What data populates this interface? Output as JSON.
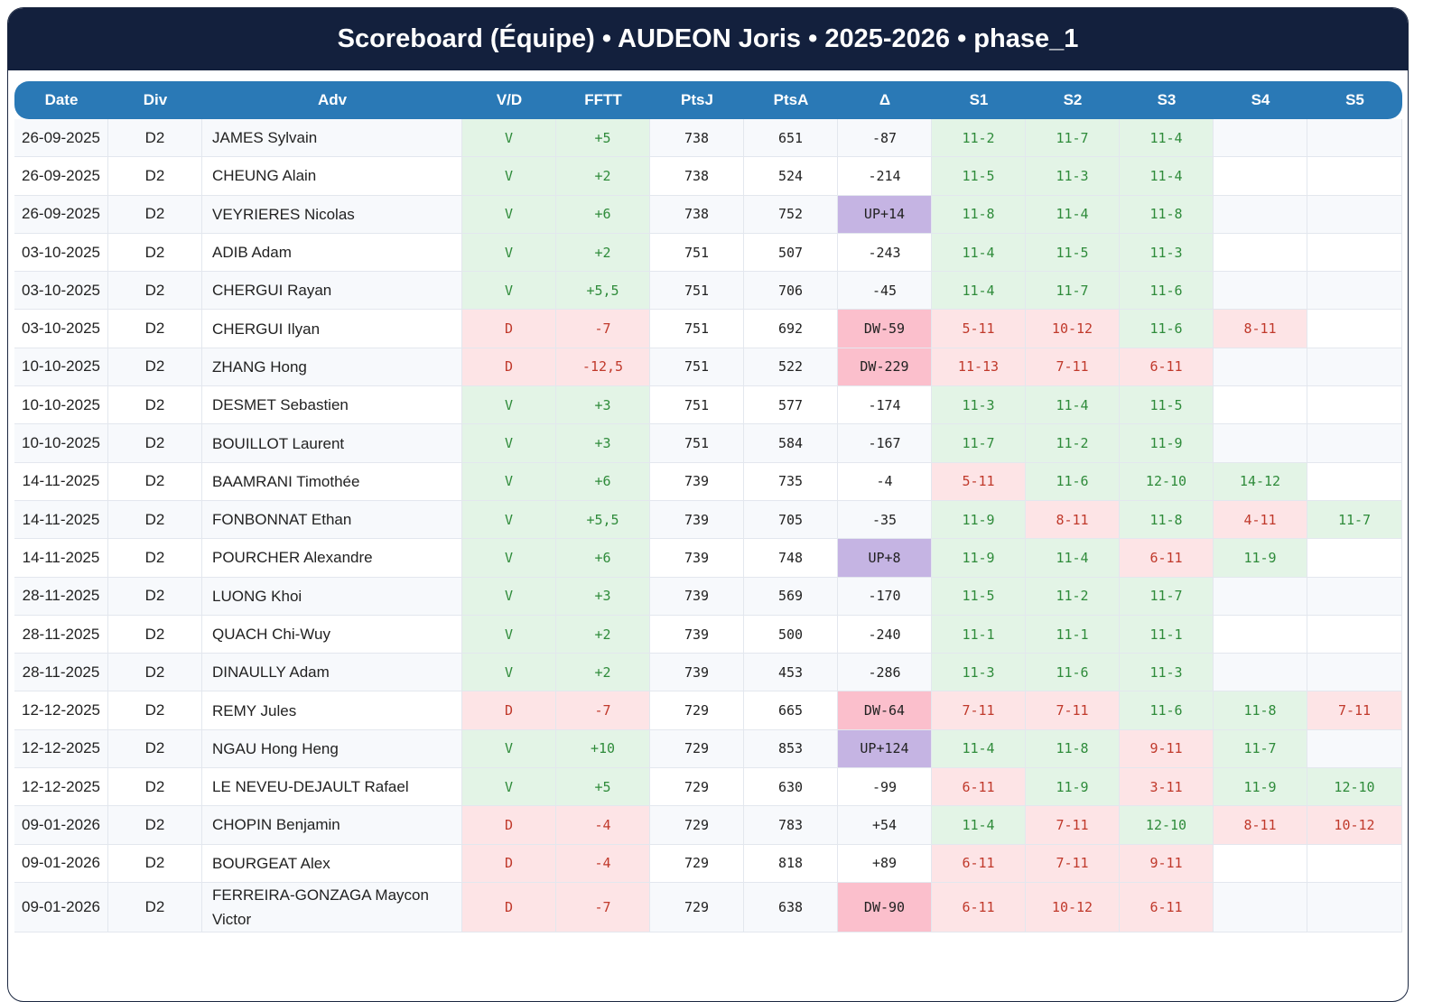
{
  "header": {
    "title": "Scoreboard (Équipe) • AUDEON Joris • 2025-2026 • phase_1"
  },
  "table": {
    "columns": [
      "Date",
      "Div",
      "Adv",
      "V/D",
      "FFTT",
      "PtsJ",
      "PtsA",
      "Δ",
      "S1",
      "S2",
      "S3",
      "S4",
      "S5"
    ],
    "rows": [
      {
        "date": "26-09-2025",
        "div": "D2",
        "adv": "JAMES Sylvain",
        "vd": "V",
        "fftt": "+5",
        "ptsj": 738,
        "ptsa": 651,
        "delta": "-87",
        "sets": [
          "11-2",
          "11-7",
          "11-4"
        ]
      },
      {
        "date": "26-09-2025",
        "div": "D2",
        "adv": "CHEUNG Alain",
        "vd": "V",
        "fftt": "+2",
        "ptsj": 738,
        "ptsa": 524,
        "delta": "-214",
        "sets": [
          "11-5",
          "11-3",
          "11-4"
        ]
      },
      {
        "date": "26-09-2025",
        "div": "D2",
        "adv": "VEYRIERES Nicolas",
        "vd": "V",
        "fftt": "+6",
        "ptsj": 738,
        "ptsa": 752,
        "delta": "UP+14",
        "sets": [
          "11-8",
          "11-4",
          "11-8"
        ]
      },
      {
        "date": "03-10-2025",
        "div": "D2",
        "adv": "ADIB Adam",
        "vd": "V",
        "fftt": "+2",
        "ptsj": 751,
        "ptsa": 507,
        "delta": "-243",
        "sets": [
          "11-4",
          "11-5",
          "11-3"
        ]
      },
      {
        "date": "03-10-2025",
        "div": "D2",
        "adv": "CHERGUI Rayan",
        "vd": "V",
        "fftt": "+5,5",
        "ptsj": 751,
        "ptsa": 706,
        "delta": "-45",
        "sets": [
          "11-4",
          "11-7",
          "11-6"
        ]
      },
      {
        "date": "03-10-2025",
        "div": "D2",
        "adv": "CHERGUI Ilyan",
        "vd": "D",
        "fftt": "-7",
        "ptsj": 751,
        "ptsa": 692,
        "delta": "DW-59",
        "sets": [
          "5-11",
          "10-12",
          "11-6",
          "8-11"
        ]
      },
      {
        "date": "10-10-2025",
        "div": "D2",
        "adv": "ZHANG Hong",
        "vd": "D",
        "fftt": "-12,5",
        "ptsj": 751,
        "ptsa": 522,
        "delta": "DW-229",
        "sets": [
          "11-13",
          "7-11",
          "6-11"
        ]
      },
      {
        "date": "10-10-2025",
        "div": "D2",
        "adv": "DESMET Sebastien",
        "vd": "V",
        "fftt": "+3",
        "ptsj": 751,
        "ptsa": 577,
        "delta": "-174",
        "sets": [
          "11-3",
          "11-4",
          "11-5"
        ]
      },
      {
        "date": "10-10-2025",
        "div": "D2",
        "adv": "BOUILLOT Laurent",
        "vd": "V",
        "fftt": "+3",
        "ptsj": 751,
        "ptsa": 584,
        "delta": "-167",
        "sets": [
          "11-7",
          "11-2",
          "11-9"
        ]
      },
      {
        "date": "14-11-2025",
        "div": "D2",
        "adv": "BAAMRANI Timothée",
        "vd": "V",
        "fftt": "+6",
        "ptsj": 739,
        "ptsa": 735,
        "delta": "-4",
        "sets": [
          "5-11",
          "11-6",
          "12-10",
          "14-12"
        ]
      },
      {
        "date": "14-11-2025",
        "div": "D2",
        "adv": "FONBONNAT Ethan",
        "vd": "V",
        "fftt": "+5,5",
        "ptsj": 739,
        "ptsa": 705,
        "delta": "-35",
        "sets": [
          "11-9",
          "8-11",
          "11-8",
          "4-11",
          "11-7"
        ]
      },
      {
        "date": "14-11-2025",
        "div": "D2",
        "adv": "POURCHER Alexandre",
        "vd": "V",
        "fftt": "+6",
        "ptsj": 739,
        "ptsa": 748,
        "delta": "UP+8",
        "sets": [
          "11-9",
          "11-4",
          "6-11",
          "11-9"
        ]
      },
      {
        "date": "28-11-2025",
        "div": "D2",
        "adv": "LUONG Khoi",
        "vd": "V",
        "fftt": "+3",
        "ptsj": 739,
        "ptsa": 569,
        "delta": "-170",
        "sets": [
          "11-5",
          "11-2",
          "11-7"
        ]
      },
      {
        "date": "28-11-2025",
        "div": "D2",
        "adv": "QUACH Chi-Wuy",
        "vd": "V",
        "fftt": "+2",
        "ptsj": 739,
        "ptsa": 500,
        "delta": "-240",
        "sets": [
          "11-1",
          "11-1",
          "11-1"
        ]
      },
      {
        "date": "28-11-2025",
        "div": "D2",
        "adv": "DINAULLY Adam",
        "vd": "V",
        "fftt": "+2",
        "ptsj": 739,
        "ptsa": 453,
        "delta": "-286",
        "sets": [
          "11-3",
          "11-6",
          "11-3"
        ]
      },
      {
        "date": "12-12-2025",
        "div": "D2",
        "adv": "REMY Jules",
        "vd": "D",
        "fftt": "-7",
        "ptsj": 729,
        "ptsa": 665,
        "delta": "DW-64",
        "sets": [
          "7-11",
          "7-11",
          "11-6",
          "11-8",
          "7-11"
        ]
      },
      {
        "date": "12-12-2025",
        "div": "D2",
        "adv": "NGAU Hong Heng",
        "vd": "V",
        "fftt": "+10",
        "ptsj": 729,
        "ptsa": 853,
        "delta": "UP+124",
        "sets": [
          "11-4",
          "11-8",
          "9-11",
          "11-7"
        ]
      },
      {
        "date": "12-12-2025",
        "div": "D2",
        "adv": "LE NEVEU-DEJAULT Rafael",
        "vd": "V",
        "fftt": "+5",
        "ptsj": 729,
        "ptsa": 630,
        "delta": "-99",
        "sets": [
          "6-11",
          "11-9",
          "3-11",
          "11-9",
          "12-10"
        ]
      },
      {
        "date": "09-01-2026",
        "div": "D2",
        "adv": "CHOPIN Benjamin",
        "vd": "D",
        "fftt": "-4",
        "ptsj": 729,
        "ptsa": 783,
        "delta": "+54",
        "sets": [
          "11-4",
          "7-11",
          "12-10",
          "8-11",
          "10-12"
        ]
      },
      {
        "date": "09-01-2026",
        "div": "D2",
        "adv": "BOURGEAT Alex",
        "vd": "D",
        "fftt": "-4",
        "ptsj": 729,
        "ptsa": 818,
        "delta": "+89",
        "sets": [
          "6-11",
          "7-11",
          "9-11"
        ]
      },
      {
        "date": "09-01-2026",
        "div": "D2",
        "adv": "FERREIRA-GONZAGA Maycon Victor",
        "vd": "D",
        "fftt": "-7",
        "ptsj": 729,
        "ptsa": 638,
        "delta": "DW-90",
        "sets": [
          "6-11",
          "10-12",
          "6-11"
        ]
      }
    ]
  }
}
